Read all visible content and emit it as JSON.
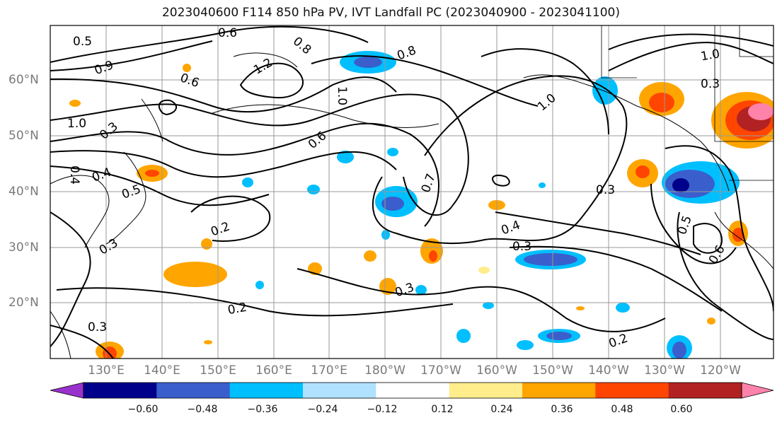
{
  "title": "2023040600 F114 850 hPa PV, IVT Landfall PC (2023040900 - 2023041100)",
  "latitude_labels": [
    "60°N",
    "50°N",
    "40°N",
    "30°N",
    "20°N"
  ],
  "longitude_labels": [
    "130°E",
    "140°E",
    "150°E",
    "160°E",
    "170°E",
    "180°W",
    "170°W",
    "160°W",
    "150°W",
    "140°W",
    "130°W",
    "120°W"
  ],
  "contour_labels": [
    "0.5",
    "0.6",
    "0.8",
    "0.9",
    "0.6",
    "1.2",
    "0.8",
    "1.0",
    "1.0",
    "1.0",
    "0.6",
    "0.7",
    "0.4",
    "0.3",
    "0.4",
    "0.5",
    "0.2",
    "0.3",
    "0.2",
    "0.3",
    "0.3",
    "0.2",
    "0.4",
    "0.5",
    "0.6",
    "1.0",
    "0.3"
  ],
  "colorbar": {
    "ticks": [
      "−0.60",
      "−0.48",
      "−0.36",
      "−0.24",
      "−0.12",
      "0.12",
      "0.24",
      "0.36",
      "0.48",
      "0.60"
    ],
    "colors": [
      "#9932cc",
      "#00008b",
      "#3a5fcd",
      "#00bfff",
      "#b0e2ff",
      "#ffffff",
      "#ffec8b",
      "#ffa500",
      "#ff4500",
      "#b22222",
      "#ff82ab"
    ]
  },
  "colors": {
    "positive_shading": "#ffa500",
    "negative_shading": "#00bfff",
    "contour": "#000000",
    "grid": "#999999"
  }
}
